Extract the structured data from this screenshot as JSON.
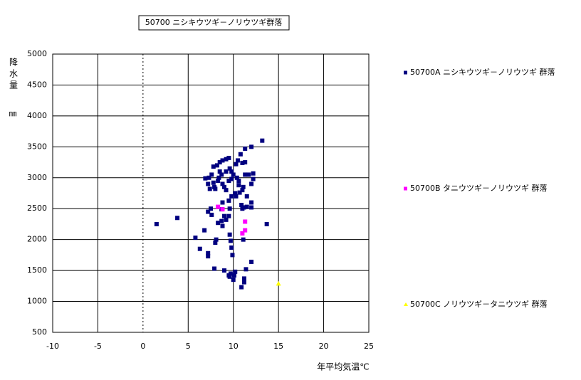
{
  "chart_data": {
    "type": "scatter",
    "title": "50700 ニシキウツギ－ノリウツギ群落",
    "x_label": "年平均気温℃",
    "y_label": "降水量",
    "y_unit": "㎜",
    "xlim": [
      -10,
      25
    ],
    "xticks": [
      -10,
      -5,
      0,
      5,
      10,
      15,
      20,
      25
    ],
    "ylim": [
      500,
      5000
    ],
    "yticks": [
      500,
      1000,
      1500,
      2000,
      2500,
      3000,
      3500,
      4000,
      4500,
      5000
    ],
    "grid": true,
    "legend": "right",
    "series": [
      {
        "name": "50700A ニシキウツギ－ノリウツギ 群落",
        "color": "#000080",
        "marker": "square",
        "x": [
          1.5,
          3.8,
          5.8,
          6.3,
          6.8,
          7.2,
          7.2,
          7.2,
          7.5,
          7.6,
          8,
          8.1,
          7.9,
          8.3,
          8.7,
          8.8,
          9,
          9.5,
          9.6,
          9.7,
          9.6,
          9.7,
          9.8,
          9.9,
          10,
          10.2,
          10.1,
          10.9,
          11.2,
          11.2,
          11.4,
          12,
          11.1,
          9,
          9.2,
          9.5,
          8.7,
          9.5,
          9.8,
          10.2,
          10.7,
          11.1,
          11,
          10.9,
          11.2,
          11.5,
          11.5,
          12,
          12,
          13.7,
          13.2,
          12,
          11.3,
          10.8,
          10.5,
          10.3,
          11,
          11.3,
          9.5,
          9.2,
          8.8,
          8.5,
          8.2,
          8.5,
          7.8,
          7.6,
          7.3,
          6.9,
          7.2,
          7.4,
          7.9,
          8,
          8.3,
          8.7,
          9.2,
          9.6,
          9.8,
          10,
          10.4,
          10.6,
          11.3,
          11.7,
          12.2,
          12.2,
          12,
          10.6,
          9.5,
          9,
          9.2,
          8.8,
          8.4,
          8.8,
          9.6,
          10.3,
          7.8,
          9.8,
          11
        ],
        "values": [
          2250,
          2350,
          2030,
          1850,
          2150,
          1780,
          1730,
          2450,
          2500,
          2400,
          1950,
          2000,
          1530,
          2270,
          2300,
          2220,
          1500,
          1420,
          1400,
          1450,
          2080,
          1980,
          1870,
          1750,
          1350,
          1480,
          1420,
          1230,
          1310,
          1370,
          1520,
          1640,
          2000,
          2380,
          2320,
          2380,
          2490,
          2630,
          2700,
          2750,
          2760,
          2850,
          2800,
          2560,
          2520,
          2530,
          2700,
          2600,
          2520,
          2250,
          3600,
          3500,
          3470,
          3380,
          3280,
          3220,
          3240,
          3250,
          3320,
          3300,
          3280,
          3250,
          3200,
          3100,
          3180,
          3050,
          3000,
          2990,
          2900,
          2820,
          2850,
          2820,
          2950,
          3050,
          3100,
          3150,
          3100,
          3050,
          3000,
          2950,
          3050,
          3050,
          3070,
          2980,
          2900,
          2880,
          2950,
          2850,
          2800,
          2900,
          3000,
          2600,
          2500,
          2700,
          2920,
          2980,
          2500
        ]
      },
      {
        "name": "50700B タニウツギ－ノリウツギ 群落",
        "color": "#ff00ff",
        "marker": "square",
        "x": [
          8.3,
          8.8,
          11.3,
          11.3,
          11
        ],
        "values": [
          2530,
          2490,
          2290,
          2150,
          2100
        ]
      },
      {
        "name": "50700C ノリウツギ－タニウツギ 群落",
        "color": "#ffff00",
        "marker": "triangle",
        "x": [
          15
        ],
        "values": [
          1290
        ]
      }
    ]
  }
}
